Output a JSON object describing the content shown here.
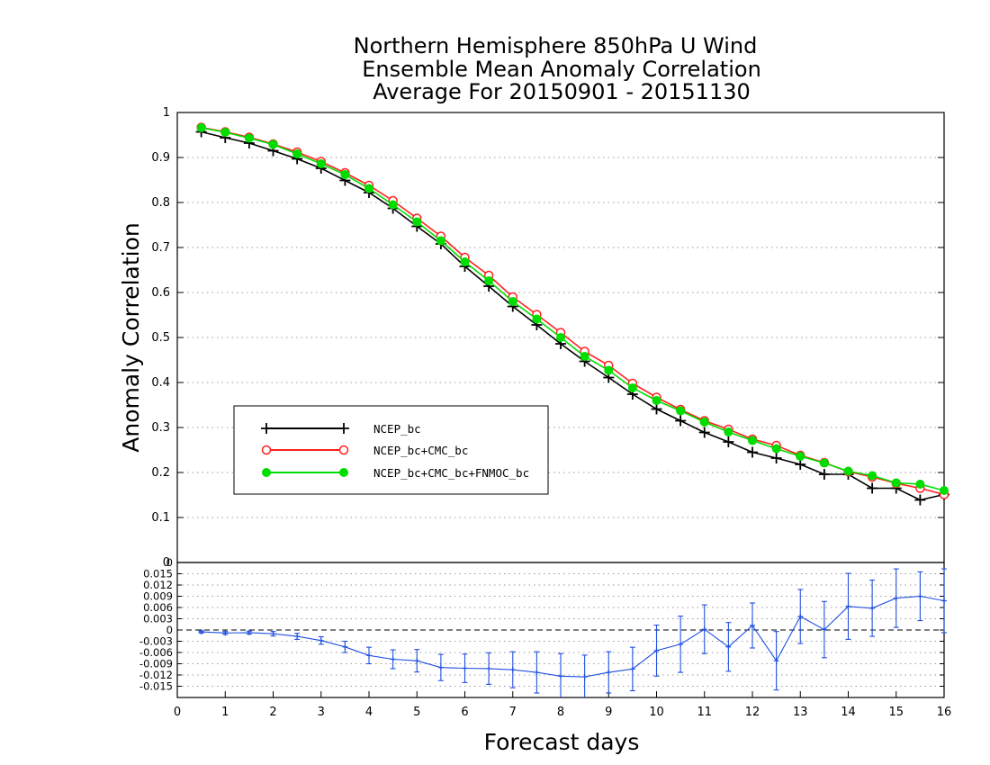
{
  "chart_data": [
    {
      "type": "line",
      "title": [
        "Northern Hemisphere 850hPa U Wind",
        "Ensemble Mean Anomaly Correlation",
        "Average For 20150901 - 20151130"
      ],
      "xlabel": "",
      "ylabel": "Anomaly Correlation",
      "xlim": [
        0,
        16
      ],
      "ylim": [
        0,
        1
      ],
      "y_ticks": [
        "1",
        "0.9",
        "0.8",
        "0.7",
        "0.6",
        "0.5",
        "0.4",
        "0.3",
        "0.2",
        "0.1",
        "0"
      ],
      "grid": "dotted horizontal",
      "legend_position": "lower-left",
      "x": [
        0.5,
        1,
        1.5,
        2,
        2.5,
        3,
        3.5,
        4,
        4.5,
        5,
        5.5,
        6,
        6.5,
        7,
        7.5,
        8,
        8.5,
        9,
        9.5,
        10,
        10.5,
        11,
        11.5,
        12,
        12.5,
        13,
        13.5,
        14,
        14.5,
        15,
        15.5,
        16
      ],
      "series": [
        {
          "name": "NCEP_bc",
          "color": "#000000",
          "marker": "plus",
          "values": [
            0.957,
            0.944,
            0.932,
            0.915,
            0.897,
            0.876,
            0.849,
            0.822,
            0.787,
            0.747,
            0.708,
            0.658,
            0.614,
            0.569,
            0.528,
            0.486,
            0.447,
            0.411,
            0.374,
            0.341,
            0.315,
            0.289,
            0.268,
            0.245,
            0.232,
            0.218,
            0.196,
            0.196,
            0.165,
            0.165,
            0.139,
            0.151
          ]
        },
        {
          "name": "NCEP_bc+CMC_bc",
          "color": "#ff2020",
          "marker": "open-circle",
          "values": [
            0.967,
            0.957,
            0.945,
            0.93,
            0.912,
            0.891,
            0.866,
            0.838,
            0.804,
            0.765,
            0.725,
            0.678,
            0.638,
            0.59,
            0.551,
            0.511,
            0.469,
            0.438,
            0.398,
            0.367,
            0.34,
            0.315,
            0.296,
            0.274,
            0.26,
            0.238,
            0.222,
            0.202,
            0.19,
            0.176,
            0.165,
            0.151
          ]
        },
        {
          "name": "NCEP_bc+CMC_bc+FNMOC_bc",
          "color": "#00dd00",
          "marker": "filled-circle",
          "values": [
            0.966,
            0.956,
            0.943,
            0.929,
            0.908,
            0.886,
            0.862,
            0.831,
            0.795,
            0.757,
            0.715,
            0.668,
            0.626,
            0.58,
            0.541,
            0.5,
            0.458,
            0.427,
            0.388,
            0.36,
            0.337,
            0.312,
            0.29,
            0.271,
            0.253,
            0.236,
            0.221,
            0.203,
            0.193,
            0.177,
            0.174,
            0.16
          ]
        }
      ]
    },
    {
      "type": "line",
      "title": "",
      "xlabel": "Forecast days",
      "ylabel": "",
      "xlim": [
        0,
        16
      ],
      "ylim": [
        -0.018,
        0.018
      ],
      "x_ticks": [
        "0",
        "1",
        "2",
        "3",
        "4",
        "5",
        "6",
        "7",
        "8",
        "9",
        "10",
        "11",
        "12",
        "13",
        "14",
        "15",
        "16"
      ],
      "y_ticks": [
        "0.015",
        "0.012",
        "0.009",
        "0.006",
        "0.003",
        "0",
        "-0.003",
        "-0.006",
        "-0.009",
        "-0.012",
        "-0.015"
      ],
      "top_tick_label": "0",
      "grid": "dotted horizontal",
      "zero_line": "dashed",
      "x": [
        0.5,
        1,
        1.5,
        2,
        2.5,
        3,
        3.5,
        4,
        4.5,
        5,
        5.5,
        6,
        6.5,
        7,
        7.5,
        8,
        8.5,
        9,
        9.5,
        10,
        10.5,
        11,
        11.5,
        12,
        12.5,
        13,
        13.5,
        14,
        14.5,
        15,
        15.5,
        16
      ],
      "series": [
        {
          "color": "#2050e0",
          "marker": "plus",
          "values": [
            -0.0005,
            -0.0008,
            -0.0007,
            -0.001,
            -0.0017,
            -0.0028,
            -0.0045,
            -0.0068,
            -0.0078,
            -0.0082,
            -0.01,
            -0.0102,
            -0.0103,
            -0.0106,
            -0.0113,
            -0.0123,
            -0.0125,
            -0.0113,
            -0.0104,
            -0.0055,
            -0.0038,
            0.0002,
            -0.0045,
            0.0012,
            -0.0082,
            0.0036,
            0.0001,
            0.0063,
            0.0058,
            0.0085,
            0.009,
            0.0078
          ],
          "error": [
            0.0003,
            0.0004,
            0.0004,
            0.0006,
            0.0008,
            0.001,
            0.0015,
            0.0022,
            0.0025,
            0.003,
            0.0035,
            0.0038,
            0.0042,
            0.0048,
            0.0055,
            0.006,
            0.0058,
            0.0055,
            0.0058,
            0.0068,
            0.0075,
            0.0065,
            0.0065,
            0.006,
            0.0078,
            0.0072,
            0.0075,
            0.0088,
            0.0075,
            0.0078,
            0.0065,
            0.0085
          ]
        }
      ]
    }
  ],
  "legend": {
    "items": [
      {
        "label": "NCEP_bc"
      },
      {
        "label": "NCEP_bc+CMC_bc"
      },
      {
        "label": "NCEP_bc+CMC_bc+FNMOC_bc"
      }
    ]
  }
}
